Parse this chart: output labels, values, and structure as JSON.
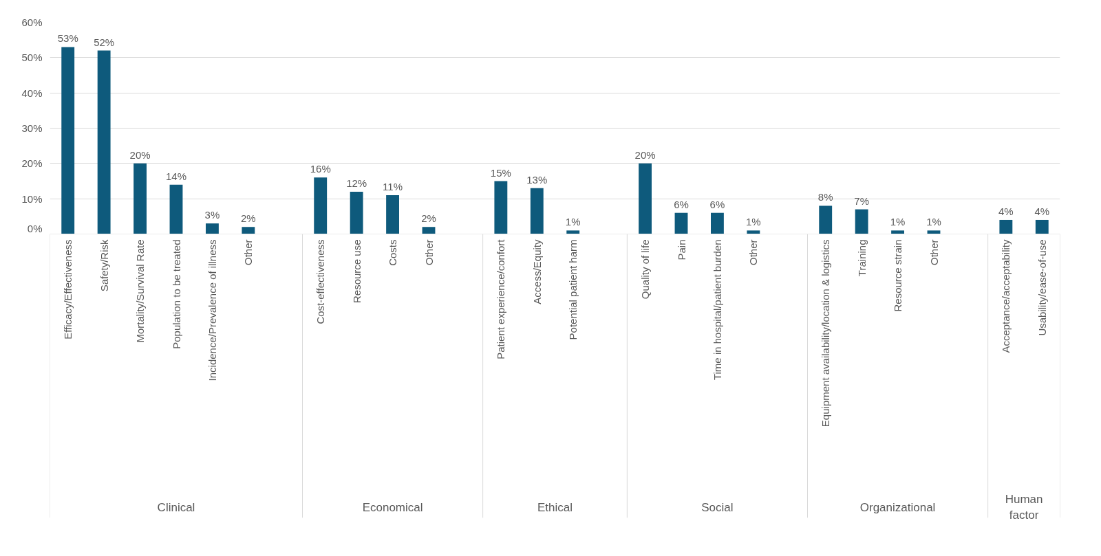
{
  "chart_data": {
    "type": "bar",
    "categories": [
      "Efficacy/Effectiveness",
      "Safety/Risk",
      "Mortality/Survival Rate",
      "Population to be treated",
      "Incidence/Prevalence of illness",
      "Other",
      null,
      "Cost-effectiveness",
      "Resource use",
      "Costs",
      "Other",
      null,
      "Patient experience/confort",
      "Access/Equity",
      "Potential patient harm",
      null,
      "Quality of life",
      "Pain",
      "Time in hospital/patient burden",
      "Other",
      null,
      "Equipment availability/location & logistics",
      "Training",
      "Resource strain",
      "Other",
      null,
      "Acceptance/acceptability",
      "Usability/ease-of-use"
    ],
    "values": [
      53,
      52,
      20,
      14,
      3,
      2,
      null,
      16,
      12,
      11,
      2,
      null,
      15,
      13,
      1,
      null,
      20,
      6,
      6,
      1,
      null,
      8,
      7,
      1,
      1,
      null,
      4,
      4
    ],
    "value_labels": [
      "53%",
      "52%",
      "20%",
      "14%",
      "3%",
      "2%",
      null,
      "16%",
      "12%",
      "11%",
      "2%",
      null,
      "15%",
      "13%",
      "1%",
      null,
      "20%",
      "6%",
      "6%",
      "1%",
      null,
      "8%",
      "7%",
      "1%",
      "1%",
      null,
      "4%",
      "4%"
    ],
    "annotations": [
      "Clinical",
      "Economical",
      "Ethical",
      "Social",
      "Organizational",
      "Human factor"
    ],
    "color": "#0e5a7c",
    "ylim": [
      0,
      60
    ],
    "yticks": [
      {
        "value": 0,
        "label": "0%"
      },
      {
        "value": 10,
        "label": "10%"
      },
      {
        "value": 20,
        "label": "20%"
      },
      {
        "value": 30,
        "label": "30%"
      },
      {
        "value": 40,
        "label": "40%"
      },
      {
        "value": 50,
        "label": "50%"
      },
      {
        "value": 60,
        "label": "60%"
      }
    ],
    "grid": "y"
  }
}
